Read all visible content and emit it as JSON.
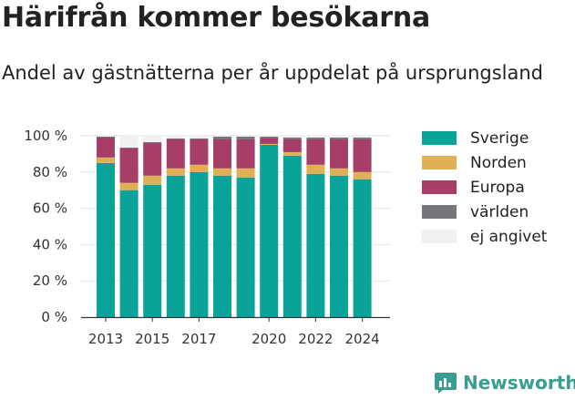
{
  "title": "Härifrån kommer besökarna",
  "subtitle": "Andel av gästnätterna per år uppdelat på ursprungsland",
  "brand": {
    "name": "Newsworthy",
    "color": "#3a9d8f"
  },
  "chart_data": {
    "type": "bar",
    "stacked": true,
    "categories": [
      "2013",
      "2014",
      "2015",
      "2016",
      "2017",
      "2018",
      "2019",
      "2020",
      "2021",
      "2022",
      "2023",
      "2024"
    ],
    "x_tick_labels": [
      "2013",
      "2015",
      "2017",
      "2020",
      "2022",
      "2024"
    ],
    "y_ticks": [
      "0 %",
      "20 %",
      "40 %",
      "60 %",
      "80 %",
      "100 %"
    ],
    "ylim": [
      0,
      100
    ],
    "grid": true,
    "legend_position": "right",
    "series": [
      {
        "name": "Sverige",
        "color": "#0aa39a",
        "values": [
          85,
          70,
          73,
          78,
          80,
          78,
          77,
          95,
          89,
          79,
          78,
          76
        ]
      },
      {
        "name": "Norden",
        "color": "#e0b055",
        "values": [
          3,
          4,
          5,
          4,
          4,
          4,
          5,
          0.5,
          2,
          5,
          4,
          4
        ]
      },
      {
        "name": "Europa",
        "color": "#a63e67",
        "values": [
          11,
          19,
          18,
          16,
          14,
          16,
          16,
          3,
          7,
          14,
          16,
          18
        ]
      },
      {
        "name": "världen",
        "color": "#74767a",
        "values": [
          0.5,
          0.5,
          0.5,
          0.5,
          0.5,
          1.5,
          1.5,
          1,
          1,
          1,
          1,
          1
        ]
      },
      {
        "name": "ej angivet",
        "color": "#f1f1f1",
        "values": [
          0.5,
          6.5,
          3.5,
          1.5,
          1.5,
          0.5,
          0.5,
          0.5,
          1,
          1,
          1,
          1
        ]
      }
    ]
  }
}
